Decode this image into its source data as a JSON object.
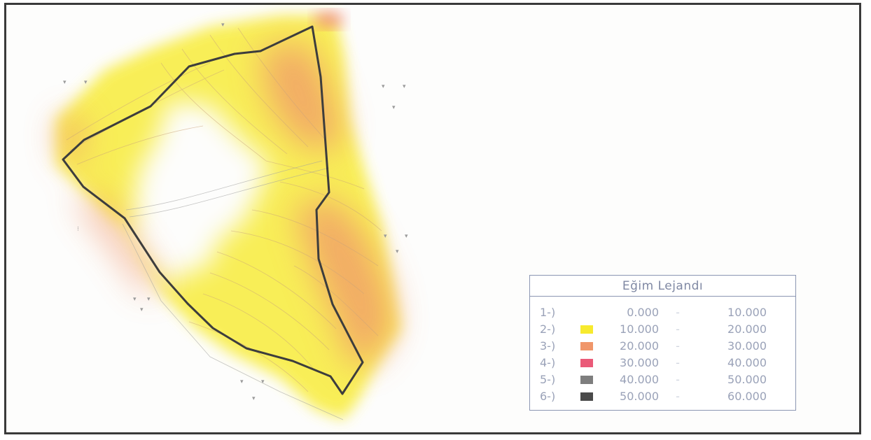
{
  "legend": {
    "title": "Eğim Lejandı",
    "rows": [
      {
        "index": "1-)",
        "from": "0.000",
        "to": "10.000",
        "color": "#ffffff"
      },
      {
        "index": "2-)",
        "from": "10.000",
        "to": "20.000",
        "color": "#f7ea2e"
      },
      {
        "index": "3-)",
        "from": "20.000",
        "to": "30.000",
        "color": "#f0966a"
      },
      {
        "index": "4-)",
        "from": "30.000",
        "to": "40.000",
        "color": "#ea5a78"
      },
      {
        "index": "5-)",
        "from": "40.000",
        "to": "50.000",
        "color": "#7e7e7e"
      },
      {
        "index": "6-)",
        "from": "50.000",
        "to": "60.000",
        "color": "#4a4a4a"
      }
    ]
  },
  "colors": {
    "frame": "#3a3a3a",
    "boundary_line": "#3d3d3d",
    "slope_yellow": "#f7ea2e",
    "slope_orange": "#f0966a",
    "slope_pink": "#ea5a78",
    "legend_border": "#8b96b2"
  }
}
